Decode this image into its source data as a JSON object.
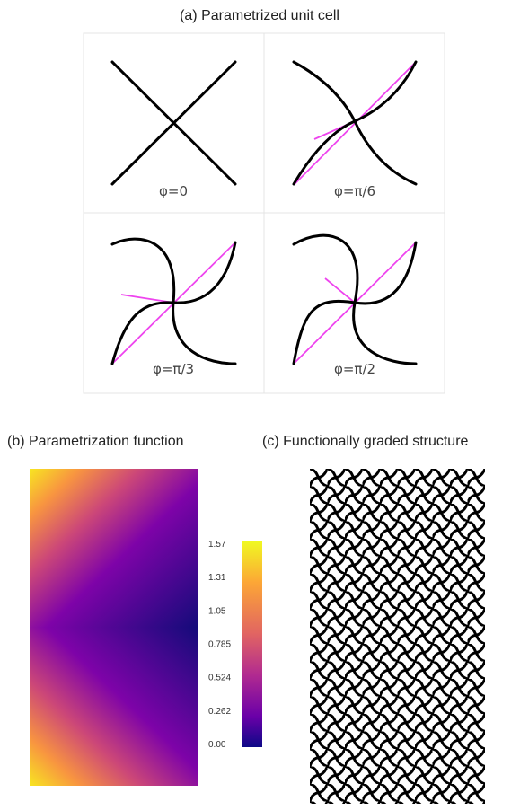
{
  "panel_a": {
    "title": "(a) Parametrized unit cell",
    "cells": [
      "φ=0",
      "φ=π/6",
      "φ=π/3",
      "φ=π/2"
    ]
  },
  "panel_b": {
    "title": "(b) Parametrization function",
    "colorbar_ticks": [
      "1.57",
      "1.31",
      "1.05",
      "0.785",
      "0.524",
      "0.262",
      "0.00"
    ]
  },
  "panel_c": {
    "title": "(c) Functionally graded structure"
  }
}
